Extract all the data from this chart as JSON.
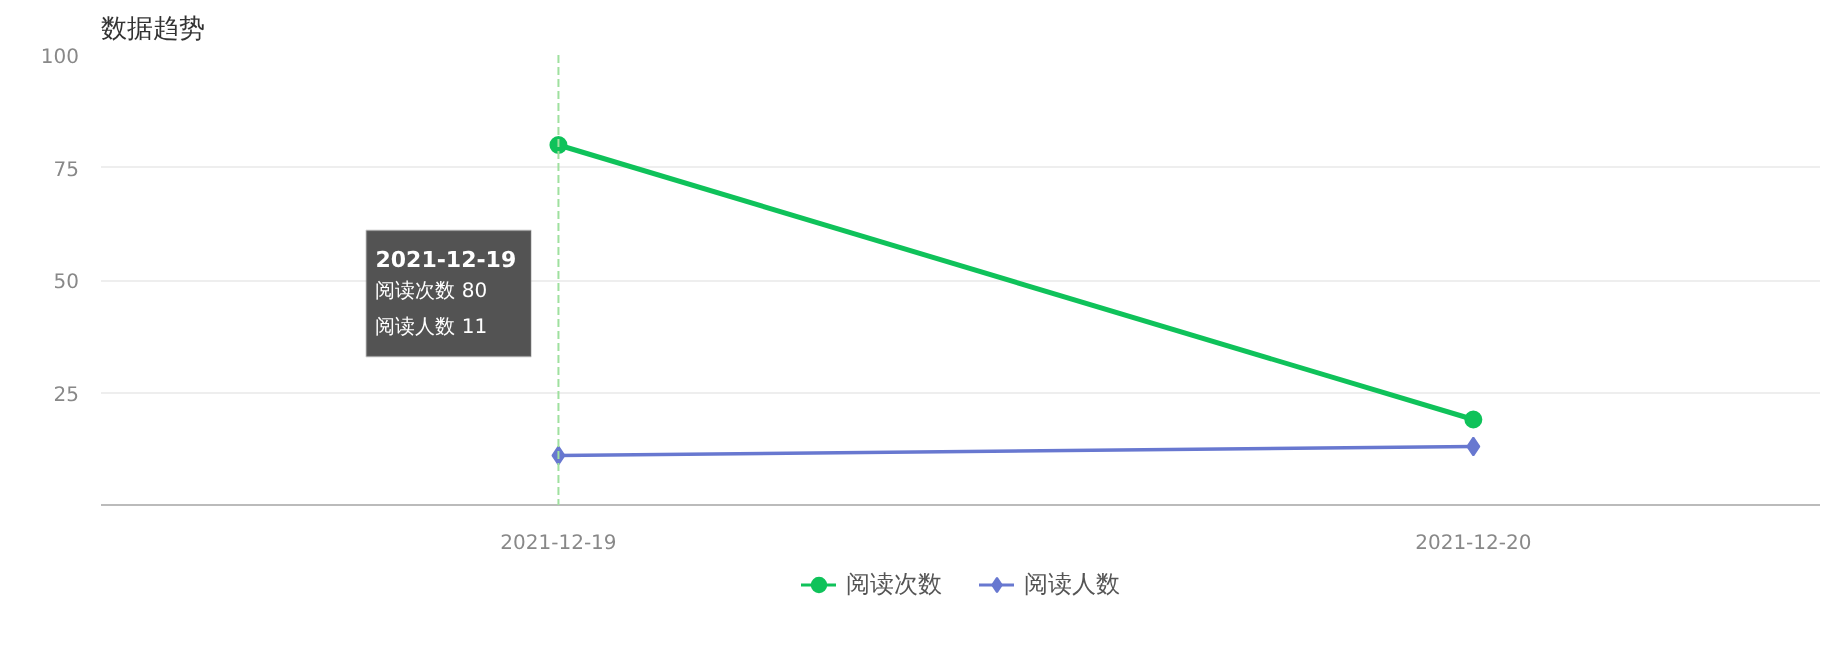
{
  "chart_data": {
    "type": "line",
    "title": "数据趋势",
    "categories": [
      "2021-12-19",
      "2021-12-20"
    ],
    "series": [
      {
        "name": "阅读次数",
        "color": "#0fc25a",
        "values": [
          80,
          19
        ],
        "marker": "circle"
      },
      {
        "name": "阅读人数",
        "color": "#6878d0",
        "values": [
          11,
          13
        ],
        "marker": "diamond"
      }
    ],
    "ylim": [
      0,
      100
    ],
    "yticks": [
      25,
      50,
      75,
      100
    ],
    "grid": "y",
    "legend": "bottom",
    "ref_lines": [
      {
        "axis": "x",
        "value": "2021-12-19",
        "color": "#9fe09f",
        "line_style": "dashed"
      }
    ],
    "annotations": [
      "2021-12-19",
      "阅读次数 80",
      "阅读人数 11"
    ]
  }
}
